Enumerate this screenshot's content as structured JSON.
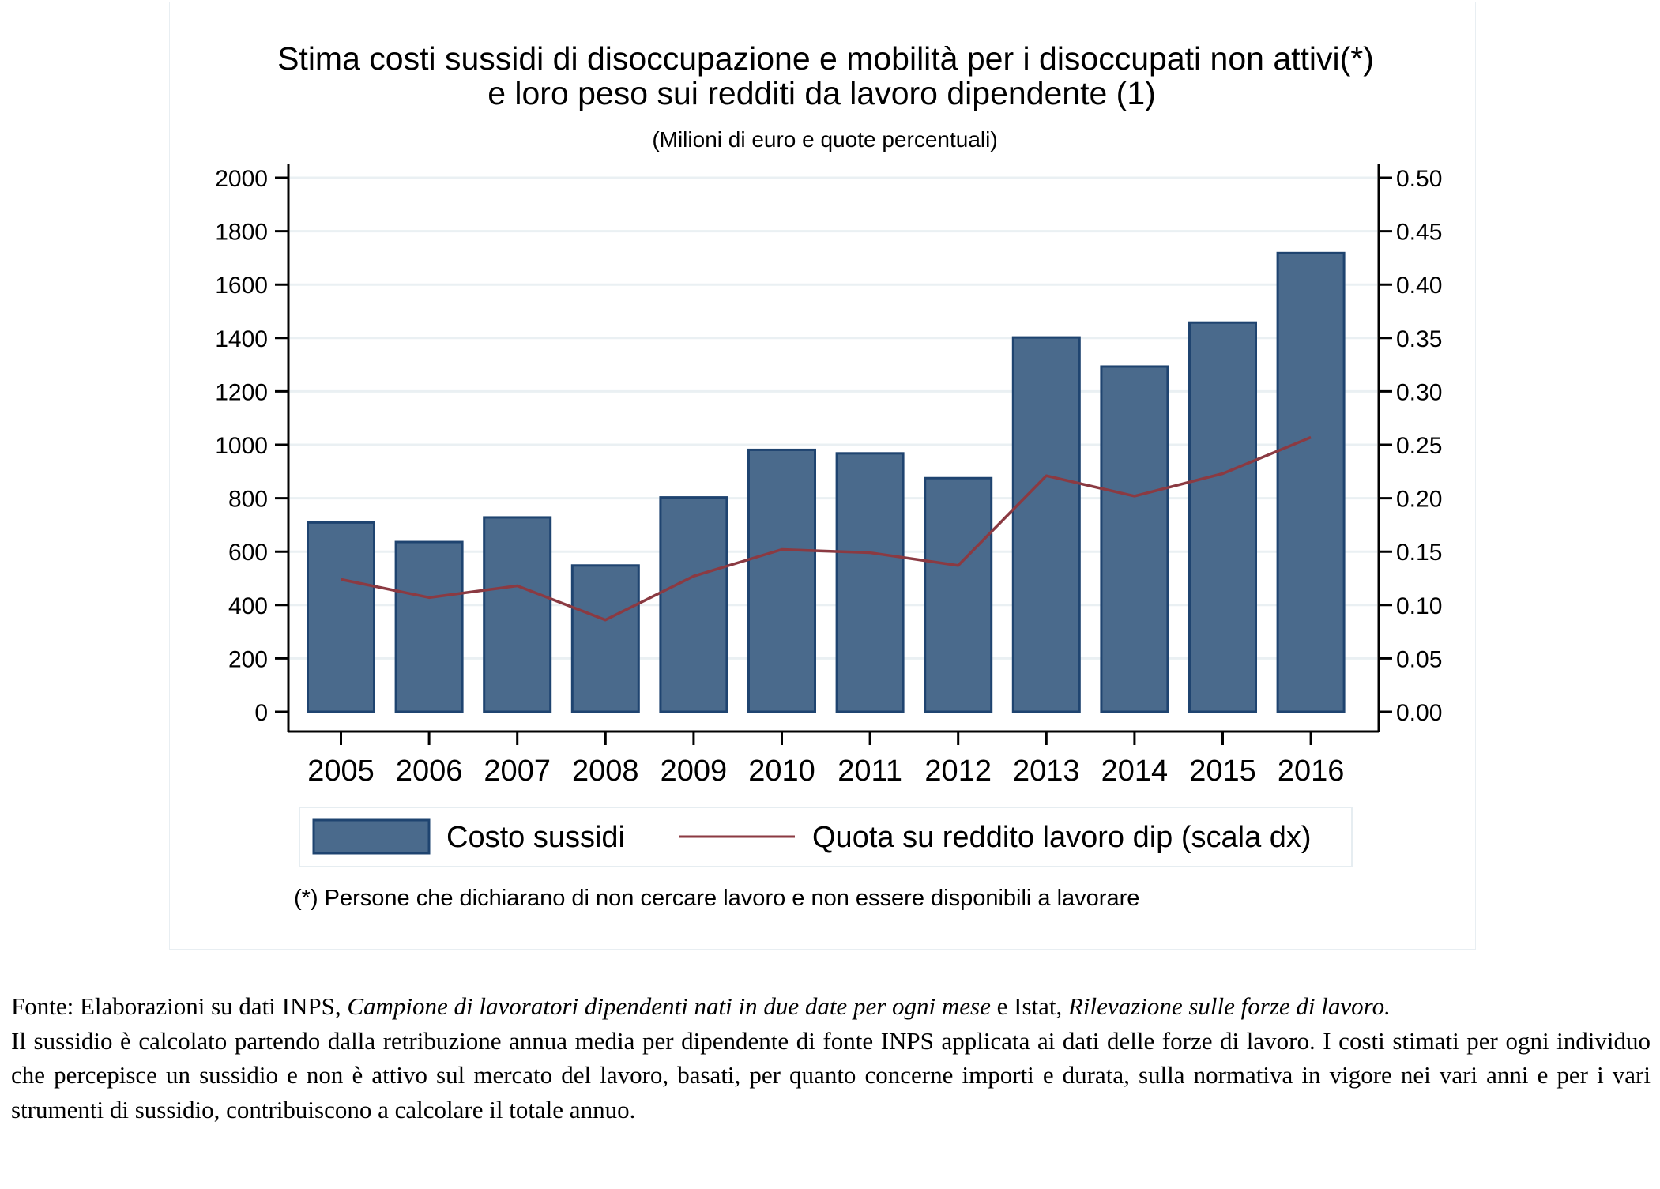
{
  "chart_data": {
    "type": "bar",
    "title": "Stima costi sussidi di disoccupazione e mobilità per i disoccupati non attivi(*)",
    "title_line2": "e loro peso sui redditi da lavoro dipendente (1)",
    "subtitle": "(Milioni di euro e quote percentuali)",
    "xlabel": "",
    "ylabel": "",
    "categories": [
      "2005",
      "2006",
      "2007",
      "2008",
      "2009",
      "2010",
      "2011",
      "2012",
      "2013",
      "2014",
      "2015",
      "2016"
    ],
    "series": [
      {
        "name": "Costo sussidi",
        "type": "bar",
        "axis": "left",
        "color": "#4a6a8c",
        "edge_color": "#1f4470",
        "values": [
          709,
          636,
          728,
          548,
          803,
          981,
          968,
          875,
          1402,
          1293,
          1458,
          1718
        ]
      },
      {
        "name": "Quota su reddito lavoro dip (scala dx)",
        "type": "line",
        "axis": "right",
        "color": "#8b3a42",
        "values": [
          0.124,
          0.107,
          0.118,
          0.086,
          0.127,
          0.152,
          0.149,
          0.137,
          0.221,
          0.202,
          0.223,
          0.257
        ]
      }
    ],
    "ylim": [
      0,
      2000
    ],
    "y_ticks": [
      "0",
      "200",
      "400",
      "600",
      "800",
      "1000",
      "1200",
      "1400",
      "1600",
      "1800",
      "2000"
    ],
    "y2lim": [
      0,
      0.5
    ],
    "y2_ticks": [
      "0.00",
      "0.05",
      "0.10",
      "0.15",
      "0.20",
      "0.25",
      "0.30",
      "0.35",
      "0.40",
      "0.45",
      "0.50"
    ],
    "grid": true,
    "legend_position": "bottom",
    "footnote": "(*) Persone che dichiarano di non cercare lavoro e non essere disponibili a lavorare"
  },
  "notes": {
    "fonte_label": "Fonte: Elaborazioni su dati INPS, ",
    "fonte_italic1": "Campione di lavoratori dipendenti nati in due date per ogni mese",
    "fonte_mid": " e Istat, ",
    "fonte_italic2": "Rilevazione sulle forze di lavoro.",
    "paragraph": "Il sussidio è calcolato partendo dalla retribuzione annua media per dipendente di fonte INPS applicata ai dati delle forze di lavoro. I costi stimati per ogni individuo che percepisce un sussidio e non è attivo sul mercato del lavoro, basati, per quanto concerne importi e durata, sulla normativa in vigore nei vari anni e per i vari strumenti di sussidio, contribuiscono a calcolare il totale annuo."
  }
}
